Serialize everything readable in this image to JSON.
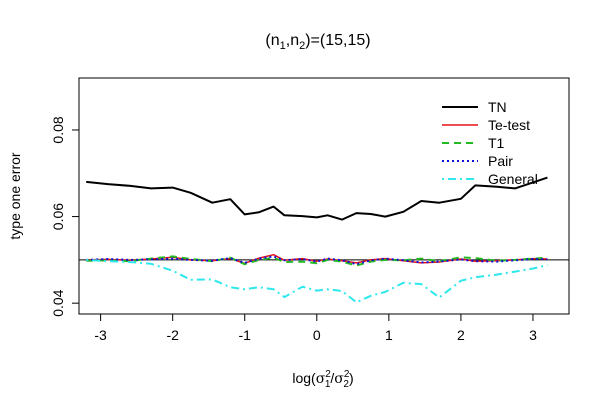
{
  "chart_data": {
    "type": "line",
    "title": "(n1,n2)=(15,15)",
    "title_parts": {
      "open": "(n",
      "sub1": "1",
      "comma": ",n",
      "sub2": "2",
      "close": ")=(15,15)"
    },
    "xlabel_parts": {
      "pre": "log(",
      "sigma1": "σ",
      "sup1": "2",
      "sub1": "1",
      "slash": "/",
      "sigma2": "σ",
      "sup2": "2",
      "sub2": "2",
      "post": ")"
    },
    "ylabel": "type one error",
    "xlim": [
      -3.3,
      3.5
    ],
    "ylim": [
      0.0375,
      0.092
    ],
    "xticks": [
      -3,
      -2,
      -1,
      0,
      1,
      2,
      3
    ],
    "xtick_labels": [
      "-3",
      "-2",
      "-1",
      "0",
      "1",
      "2",
      "3"
    ],
    "yticks": [
      0.04,
      0.06,
      0.08
    ],
    "ytick_labels": [
      "0.04",
      "0.06",
      "0.08"
    ],
    "reference_line": 0.05,
    "legend_position": "top-right",
    "x": [
      -3.2,
      -2.9,
      -2.6,
      -2.3,
      -2.0,
      -1.75,
      -1.45,
      -1.2,
      -1.0,
      -0.8,
      -0.6,
      -0.45,
      -0.2,
      0.0,
      0.15,
      0.35,
      0.55,
      0.75,
      0.95,
      1.2,
      1.45,
      1.7,
      2.0,
      2.2,
      2.5,
      2.75,
      3.0,
      3.2
    ],
    "series": [
      {
        "name": "TN",
        "color": "#000000",
        "dash": "solid",
        "width": 2,
        "values": [
          0.068,
          0.0675,
          0.0671,
          0.0665,
          0.0667,
          0.0655,
          0.0632,
          0.064,
          0.0605,
          0.061,
          0.0623,
          0.0603,
          0.0601,
          0.0598,
          0.0603,
          0.0593,
          0.0608,
          0.0606,
          0.06,
          0.0611,
          0.0636,
          0.0632,
          0.0641,
          0.0672,
          0.0669,
          0.0665,
          0.0679,
          0.069
        ]
      },
      {
        "name": "Te-test",
        "color": "#e8131a",
        "dash": "solid",
        "width": 1.5,
        "values": [
          0.05,
          0.0501,
          0.0499,
          0.0502,
          0.0506,
          0.05,
          0.0498,
          0.0503,
          0.0492,
          0.0504,
          0.0512,
          0.0499,
          0.0503,
          0.0497,
          0.0502,
          0.0498,
          0.0493,
          0.05,
          0.0503,
          0.0498,
          0.0493,
          0.0495,
          0.0502,
          0.0497,
          0.0498,
          0.05,
          0.0503,
          0.0502
        ]
      },
      {
        "name": "T1",
        "color": "#22bb22",
        "dash": "dashed",
        "width": 2,
        "values": [
          0.0498,
          0.0499,
          0.0497,
          0.0503,
          0.0508,
          0.0502,
          0.0497,
          0.0505,
          0.049,
          0.05,
          0.0505,
          0.0495,
          0.0496,
          0.0492,
          0.05,
          0.0496,
          0.0487,
          0.0496,
          0.05,
          0.0499,
          0.0503,
          0.0497,
          0.0506,
          0.0504,
          0.0498,
          0.05,
          0.0503,
          0.0505
        ]
      },
      {
        "name": "Pair",
        "color": "#1010dd",
        "dash": "dotted",
        "width": 2,
        "values": [
          0.05,
          0.0502,
          0.05,
          0.0501,
          0.0503,
          0.05,
          0.0498,
          0.0504,
          0.0493,
          0.0503,
          0.0508,
          0.0499,
          0.0502,
          0.0496,
          0.0503,
          0.0499,
          0.049,
          0.0499,
          0.0503,
          0.0499,
          0.0494,
          0.0496,
          0.0501,
          0.0497,
          0.0496,
          0.0499,
          0.0502,
          0.0501
        ]
      },
      {
        "name": "General",
        "color": "#2ee8ee",
        "dash": "dashdot",
        "width": 2,
        "values": [
          0.05,
          0.0497,
          0.0495,
          0.0491,
          0.0475,
          0.0454,
          0.0455,
          0.0437,
          0.0432,
          0.0437,
          0.0432,
          0.0414,
          0.0438,
          0.0429,
          0.0432,
          0.0428,
          0.0402,
          0.0417,
          0.0426,
          0.0447,
          0.0444,
          0.0413,
          0.0452,
          0.046,
          0.0466,
          0.0473,
          0.048,
          0.0488
        ]
      }
    ]
  }
}
